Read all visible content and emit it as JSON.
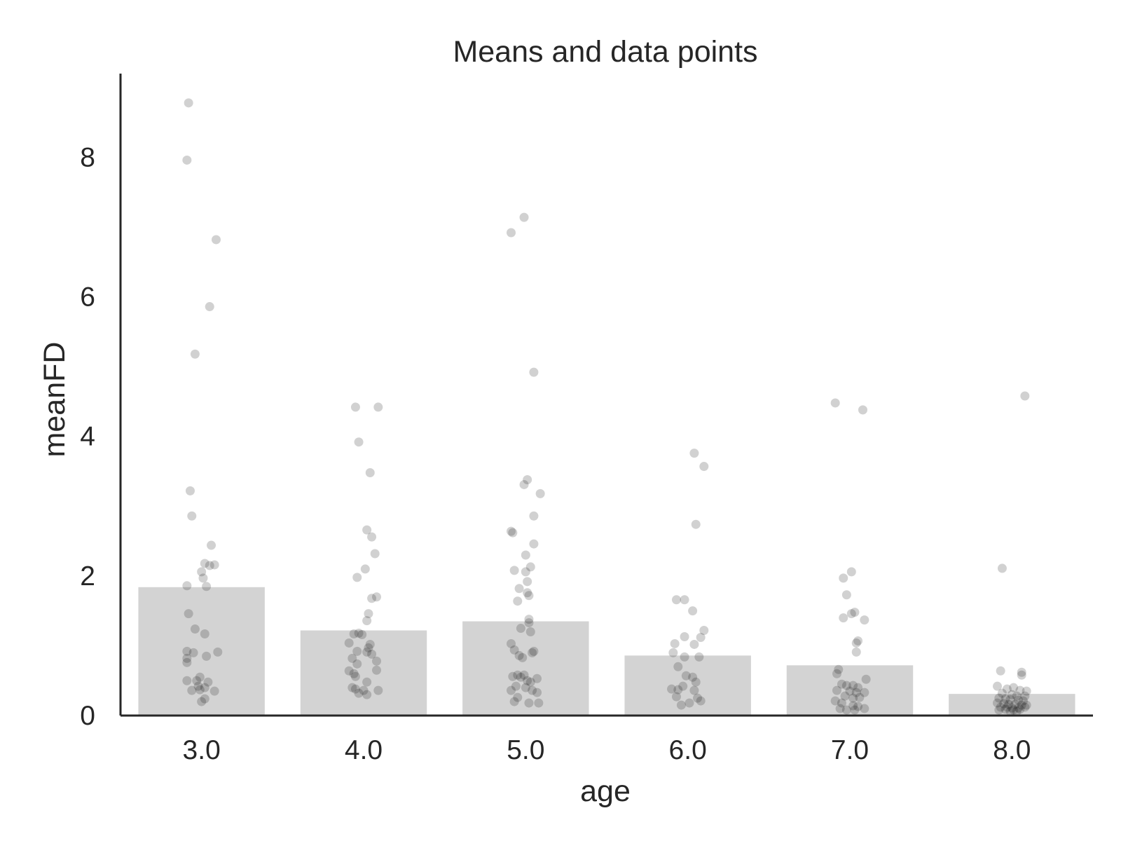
{
  "chart_data": {
    "type": "bar",
    "title": "Means and data points",
    "xlabel": "age",
    "ylabel": "meanFD",
    "categories": [
      "3.0",
      "4.0",
      "5.0",
      "6.0",
      "7.0",
      "8.0"
    ],
    "values": [
      1.84,
      1.22,
      1.35,
      0.86,
      0.72,
      0.31
    ],
    "ylim": [
      0,
      9.2
    ],
    "yticks": [
      "0",
      "2",
      "4",
      "6",
      "8"
    ],
    "grid": false,
    "bar_color": "#d3d3d3",
    "point_color": "#000000",
    "axis_color": "#262626",
    "points": [
      {
        "category": "3.0",
        "x": -0.08,
        "y": 8.78
      },
      {
        "category": "3.0",
        "x": -0.09,
        "y": 7.96
      },
      {
        "category": "3.0",
        "x": 0.09,
        "y": 6.82
      },
      {
        "category": "3.0",
        "x": 0.05,
        "y": 5.86
      },
      {
        "category": "3.0",
        "x": -0.04,
        "y": 5.18
      },
      {
        "category": "3.0",
        "x": -0.07,
        "y": 3.22
      },
      {
        "category": "3.0",
        "x": -0.06,
        "y": 2.86
      },
      {
        "category": "3.0",
        "x": 0.06,
        "y": 2.44
      },
      {
        "category": "3.0",
        "x": 0.02,
        "y": 2.18
      },
      {
        "category": "3.0",
        "x": 0.05,
        "y": 2.15
      },
      {
        "category": "3.0",
        "x": 0.08,
        "y": 2.16
      },
      {
        "category": "3.0",
        "x": 0.0,
        "y": 2.06
      },
      {
        "category": "3.0",
        "x": 0.01,
        "y": 1.97
      },
      {
        "category": "3.0",
        "x": -0.09,
        "y": 1.86
      },
      {
        "category": "3.0",
        "x": 0.03,
        "y": 1.85
      },
      {
        "category": "3.0",
        "x": -0.08,
        "y": 1.46
      },
      {
        "category": "3.0",
        "x": -0.04,
        "y": 1.24
      },
      {
        "category": "3.0",
        "x": 0.02,
        "y": 1.17
      },
      {
        "category": "3.0",
        "x": -0.09,
        "y": 0.92
      },
      {
        "category": "3.0",
        "x": -0.05,
        "y": 0.9
      },
      {
        "category": "3.0",
        "x": 0.1,
        "y": 0.91
      },
      {
        "category": "3.0",
        "x": 0.03,
        "y": 0.85
      },
      {
        "category": "3.0",
        "x": -0.09,
        "y": 0.82
      },
      {
        "category": "3.0",
        "x": -0.09,
        "y": 0.76
      },
      {
        "category": "3.0",
        "x": -0.01,
        "y": 0.55
      },
      {
        "category": "3.0",
        "x": -0.03,
        "y": 0.5
      },
      {
        "category": "3.0",
        "x": -0.09,
        "y": 0.5
      },
      {
        "category": "3.0",
        "x": 0.04,
        "y": 0.48
      },
      {
        "category": "3.0",
        "x": -0.02,
        "y": 0.42
      },
      {
        "category": "3.0",
        "x": 0.02,
        "y": 0.4
      },
      {
        "category": "3.0",
        "x": -0.06,
        "y": 0.36
      },
      {
        "category": "3.0",
        "x": 0.08,
        "y": 0.35
      },
      {
        "category": "3.0",
        "x": -0.01,
        "y": 0.37
      },
      {
        "category": "3.0",
        "x": 0.02,
        "y": 0.24
      },
      {
        "category": "3.0",
        "x": 0.0,
        "y": 0.2
      },
      {
        "category": "4.0",
        "x": -0.05,
        "y": 4.42
      },
      {
        "category": "4.0",
        "x": 0.09,
        "y": 4.42
      },
      {
        "category": "4.0",
        "x": -0.03,
        "y": 3.92
      },
      {
        "category": "4.0",
        "x": 0.04,
        "y": 3.48
      },
      {
        "category": "4.0",
        "x": 0.02,
        "y": 2.66
      },
      {
        "category": "4.0",
        "x": 0.05,
        "y": 2.56
      },
      {
        "category": "4.0",
        "x": 0.07,
        "y": 2.32
      },
      {
        "category": "4.0",
        "x": 0.01,
        "y": 2.1
      },
      {
        "category": "4.0",
        "x": -0.04,
        "y": 1.98
      },
      {
        "category": "4.0",
        "x": 0.08,
        "y": 1.7
      },
      {
        "category": "4.0",
        "x": 0.05,
        "y": 1.68
      },
      {
        "category": "4.0",
        "x": 0.03,
        "y": 1.46
      },
      {
        "category": "4.0",
        "x": 0.02,
        "y": 1.36
      },
      {
        "category": "4.0",
        "x": -0.06,
        "y": 1.17
      },
      {
        "category": "4.0",
        "x": -0.03,
        "y": 1.18
      },
      {
        "category": "4.0",
        "x": -0.01,
        "y": 1.16
      },
      {
        "category": "4.0",
        "x": -0.09,
        "y": 1.04
      },
      {
        "category": "4.0",
        "x": 0.04,
        "y": 1.02
      },
      {
        "category": "4.0",
        "x": 0.03,
        "y": 0.97
      },
      {
        "category": "4.0",
        "x": -0.04,
        "y": 0.92
      },
      {
        "category": "4.0",
        "x": 0.02,
        "y": 0.91
      },
      {
        "category": "4.0",
        "x": 0.05,
        "y": 0.88
      },
      {
        "category": "4.0",
        "x": -0.07,
        "y": 0.82
      },
      {
        "category": "4.0",
        "x": 0.08,
        "y": 0.78
      },
      {
        "category": "4.0",
        "x": -0.04,
        "y": 0.74
      },
      {
        "category": "4.0",
        "x": -0.09,
        "y": 0.64
      },
      {
        "category": "4.0",
        "x": -0.06,
        "y": 0.6
      },
      {
        "category": "4.0",
        "x": 0.08,
        "y": 0.65
      },
      {
        "category": "4.0",
        "x": -0.05,
        "y": 0.56
      },
      {
        "category": "4.0",
        "x": 0.02,
        "y": 0.48
      },
      {
        "category": "4.0",
        "x": -0.07,
        "y": 0.4
      },
      {
        "category": "4.0",
        "x": -0.05,
        "y": 0.38
      },
      {
        "category": "4.0",
        "x": 0.0,
        "y": 0.36
      },
      {
        "category": "4.0",
        "x": 0.09,
        "y": 0.36
      },
      {
        "category": "4.0",
        "x": -0.03,
        "y": 0.32
      },
      {
        "category": "4.0",
        "x": 0.02,
        "y": 0.3
      },
      {
        "category": "5.0",
        "x": -0.01,
        "y": 7.14
      },
      {
        "category": "5.0",
        "x": -0.09,
        "y": 6.92
      },
      {
        "category": "5.0",
        "x": 0.05,
        "y": 4.92
      },
      {
        "category": "5.0",
        "x": 0.01,
        "y": 3.38
      },
      {
        "category": "5.0",
        "x": -0.01,
        "y": 3.31
      },
      {
        "category": "5.0",
        "x": 0.09,
        "y": 3.18
      },
      {
        "category": "5.0",
        "x": 0.05,
        "y": 2.86
      },
      {
        "category": "5.0",
        "x": -0.09,
        "y": 2.64
      },
      {
        "category": "5.0",
        "x": -0.08,
        "y": 2.62
      },
      {
        "category": "5.0",
        "x": 0.05,
        "y": 2.46
      },
      {
        "category": "5.0",
        "x": 0.0,
        "y": 2.3
      },
      {
        "category": "5.0",
        "x": 0.03,
        "y": 2.13
      },
      {
        "category": "5.0",
        "x": -0.07,
        "y": 2.08
      },
      {
        "category": "5.0",
        "x": 0.0,
        "y": 2.06
      },
      {
        "category": "5.0",
        "x": 0.01,
        "y": 1.92
      },
      {
        "category": "5.0",
        "x": -0.04,
        "y": 1.82
      },
      {
        "category": "5.0",
        "x": 0.01,
        "y": 1.76
      },
      {
        "category": "5.0",
        "x": 0.02,
        "y": 1.72
      },
      {
        "category": "5.0",
        "x": -0.05,
        "y": 1.64
      },
      {
        "category": "5.0",
        "x": 0.02,
        "y": 1.38
      },
      {
        "category": "5.0",
        "x": 0.02,
        "y": 1.33
      },
      {
        "category": "5.0",
        "x": -0.03,
        "y": 1.25
      },
      {
        "category": "5.0",
        "x": 0.03,
        "y": 1.2
      },
      {
        "category": "5.0",
        "x": -0.09,
        "y": 1.03
      },
      {
        "category": "5.0",
        "x": -0.07,
        "y": 0.94
      },
      {
        "category": "5.0",
        "x": 0.05,
        "y": 0.92
      },
      {
        "category": "5.0",
        "x": 0.04,
        "y": 0.9
      },
      {
        "category": "5.0",
        "x": -0.04,
        "y": 0.86
      },
      {
        "category": "5.0",
        "x": -0.02,
        "y": 0.83
      },
      {
        "category": "5.0",
        "x": -0.08,
        "y": 0.56
      },
      {
        "category": "5.0",
        "x": -0.05,
        "y": 0.58
      },
      {
        "category": "5.0",
        "x": -0.03,
        "y": 0.55
      },
      {
        "category": "5.0",
        "x": -0.01,
        "y": 0.58
      },
      {
        "category": "5.0",
        "x": 0.01,
        "y": 0.5
      },
      {
        "category": "5.0",
        "x": 0.03,
        "y": 0.48
      },
      {
        "category": "5.0",
        "x": 0.07,
        "y": 0.53
      },
      {
        "category": "5.0",
        "x": -0.06,
        "y": 0.42
      },
      {
        "category": "5.0",
        "x": 0.0,
        "y": 0.4
      },
      {
        "category": "5.0",
        "x": 0.04,
        "y": 0.36
      },
      {
        "category": "5.0",
        "x": -0.09,
        "y": 0.36
      },
      {
        "category": "5.0",
        "x": 0.07,
        "y": 0.33
      },
      {
        "category": "5.0",
        "x": -0.05,
        "y": 0.26
      },
      {
        "category": "5.0",
        "x": -0.07,
        "y": 0.2
      },
      {
        "category": "5.0",
        "x": 0.02,
        "y": 0.18
      },
      {
        "category": "5.0",
        "x": 0.08,
        "y": 0.18
      },
      {
        "category": "6.0",
        "x": 0.04,
        "y": 3.76
      },
      {
        "category": "6.0",
        "x": 0.1,
        "y": 3.57
      },
      {
        "category": "6.0",
        "x": 0.05,
        "y": 2.74
      },
      {
        "category": "6.0",
        "x": -0.07,
        "y": 1.66
      },
      {
        "category": "6.0",
        "x": -0.02,
        "y": 1.66
      },
      {
        "category": "6.0",
        "x": 0.03,
        "y": 1.5
      },
      {
        "category": "6.0",
        "x": 0.1,
        "y": 1.22
      },
      {
        "category": "6.0",
        "x": -0.02,
        "y": 1.13
      },
      {
        "category": "6.0",
        "x": 0.08,
        "y": 1.12
      },
      {
        "category": "6.0",
        "x": -0.08,
        "y": 1.03
      },
      {
        "category": "6.0",
        "x": 0.04,
        "y": 1.02
      },
      {
        "category": "6.0",
        "x": -0.09,
        "y": 0.9
      },
      {
        "category": "6.0",
        "x": -0.02,
        "y": 0.84
      },
      {
        "category": "6.0",
        "x": 0.07,
        "y": 0.84
      },
      {
        "category": "6.0",
        "x": -0.06,
        "y": 0.7
      },
      {
        "category": "6.0",
        "x": -0.01,
        "y": 0.57
      },
      {
        "category": "6.0",
        "x": 0.03,
        "y": 0.55
      },
      {
        "category": "6.0",
        "x": 0.05,
        "y": 0.48
      },
      {
        "category": "6.0",
        "x": -0.03,
        "y": 0.42
      },
      {
        "category": "6.0",
        "x": -0.1,
        "y": 0.38
      },
      {
        "category": "6.0",
        "x": -0.06,
        "y": 0.37
      },
      {
        "category": "6.0",
        "x": 0.04,
        "y": 0.36
      },
      {
        "category": "6.0",
        "x": -0.07,
        "y": 0.27
      },
      {
        "category": "6.0",
        "x": 0.06,
        "y": 0.25
      },
      {
        "category": "6.0",
        "x": 0.08,
        "y": 0.21
      },
      {
        "category": "6.0",
        "x": 0.01,
        "y": 0.18
      },
      {
        "category": "6.0",
        "x": -0.04,
        "y": 0.15
      },
      {
        "category": "7.0",
        "x": -0.09,
        "y": 4.48
      },
      {
        "category": "7.0",
        "x": 0.08,
        "y": 4.38
      },
      {
        "category": "7.0",
        "x": 0.01,
        "y": 2.06
      },
      {
        "category": "7.0",
        "x": -0.04,
        "y": 1.97
      },
      {
        "category": "7.0",
        "x": -0.02,
        "y": 1.73
      },
      {
        "category": "7.0",
        "x": 0.03,
        "y": 1.48
      },
      {
        "category": "7.0",
        "x": 0.01,
        "y": 1.46
      },
      {
        "category": "7.0",
        "x": -0.04,
        "y": 1.4
      },
      {
        "category": "7.0",
        "x": 0.09,
        "y": 1.37
      },
      {
        "category": "7.0",
        "x": 0.05,
        "y": 1.07
      },
      {
        "category": "7.0",
        "x": 0.04,
        "y": 1.04
      },
      {
        "category": "7.0",
        "x": 0.04,
        "y": 0.91
      },
      {
        "category": "7.0",
        "x": -0.07,
        "y": 0.66
      },
      {
        "category": "7.0",
        "x": -0.08,
        "y": 0.6
      },
      {
        "category": "7.0",
        "x": 0.1,
        "y": 0.52
      },
      {
        "category": "7.0",
        "x": -0.05,
        "y": 0.45
      },
      {
        "category": "7.0",
        "x": -0.02,
        "y": 0.43
      },
      {
        "category": "7.0",
        "x": 0.02,
        "y": 0.43
      },
      {
        "category": "7.0",
        "x": 0.05,
        "y": 0.4
      },
      {
        "category": "7.0",
        "x": -0.08,
        "y": 0.36
      },
      {
        "category": "7.0",
        "x": 0.0,
        "y": 0.35
      },
      {
        "category": "7.0",
        "x": 0.04,
        "y": 0.33
      },
      {
        "category": "7.0",
        "x": 0.09,
        "y": 0.33
      },
      {
        "category": "7.0",
        "x": -0.03,
        "y": 0.28
      },
      {
        "category": "7.0",
        "x": 0.02,
        "y": 0.25
      },
      {
        "category": "7.0",
        "x": 0.06,
        "y": 0.26
      },
      {
        "category": "7.0",
        "x": -0.09,
        "y": 0.21
      },
      {
        "category": "7.0",
        "x": -0.05,
        "y": 0.18
      },
      {
        "category": "7.0",
        "x": 0.02,
        "y": 0.14
      },
      {
        "category": "7.0",
        "x": 0.05,
        "y": 0.13
      },
      {
        "category": "7.0",
        "x": -0.06,
        "y": 0.1
      },
      {
        "category": "7.0",
        "x": 0.09,
        "y": 0.1
      },
      {
        "category": "7.0",
        "x": -0.02,
        "y": 0.08
      },
      {
        "category": "7.0",
        "x": 0.03,
        "y": 0.08
      },
      {
        "category": "8.0",
        "x": 0.08,
        "y": 4.58
      },
      {
        "category": "8.0",
        "x": -0.06,
        "y": 2.11
      },
      {
        "category": "8.0",
        "x": -0.07,
        "y": 0.64
      },
      {
        "category": "8.0",
        "x": 0.06,
        "y": 0.62
      },
      {
        "category": "8.0",
        "x": 0.06,
        "y": 0.58
      },
      {
        "category": "8.0",
        "x": -0.09,
        "y": 0.42
      },
      {
        "category": "8.0",
        "x": -0.03,
        "y": 0.38
      },
      {
        "category": "8.0",
        "x": 0.01,
        "y": 0.4
      },
      {
        "category": "8.0",
        "x": 0.05,
        "y": 0.36
      },
      {
        "category": "8.0",
        "x": 0.09,
        "y": 0.35
      },
      {
        "category": "8.0",
        "x": -0.06,
        "y": 0.32
      },
      {
        "category": "8.0",
        "x": 0.0,
        "y": 0.3
      },
      {
        "category": "8.0",
        "x": 0.03,
        "y": 0.28
      },
      {
        "category": "8.0",
        "x": 0.08,
        "y": 0.28
      },
      {
        "category": "8.0",
        "x": -0.08,
        "y": 0.25
      },
      {
        "category": "8.0",
        "x": -0.04,
        "y": 0.24
      },
      {
        "category": "8.0",
        "x": -0.01,
        "y": 0.23
      },
      {
        "category": "8.0",
        "x": 0.04,
        "y": 0.22
      },
      {
        "category": "8.0",
        "x": 0.07,
        "y": 0.21
      },
      {
        "category": "8.0",
        "x": -0.09,
        "y": 0.18
      },
      {
        "category": "8.0",
        "x": -0.05,
        "y": 0.17
      },
      {
        "category": "8.0",
        "x": -0.02,
        "y": 0.16
      },
      {
        "category": "8.0",
        "x": 0.02,
        "y": 0.16
      },
      {
        "category": "8.0",
        "x": 0.06,
        "y": 0.15
      },
      {
        "category": "8.0",
        "x": 0.09,
        "y": 0.15
      },
      {
        "category": "8.0",
        "x": -0.07,
        "y": 0.12
      },
      {
        "category": "8.0",
        "x": -0.03,
        "y": 0.12
      },
      {
        "category": "8.0",
        "x": 0.0,
        "y": 0.11
      },
      {
        "category": "8.0",
        "x": 0.04,
        "y": 0.11
      },
      {
        "category": "8.0",
        "x": 0.08,
        "y": 0.12
      },
      {
        "category": "8.0",
        "x": -0.08,
        "y": 0.08
      },
      {
        "category": "8.0",
        "x": -0.04,
        "y": 0.09
      },
      {
        "category": "8.0",
        "x": 0.01,
        "y": 0.08
      },
      {
        "category": "8.0",
        "x": 0.05,
        "y": 0.09
      },
      {
        "category": "8.0",
        "x": -0.01,
        "y": 0.06
      },
      {
        "category": "8.0",
        "x": 0.03,
        "y": 0.06
      }
    ]
  }
}
